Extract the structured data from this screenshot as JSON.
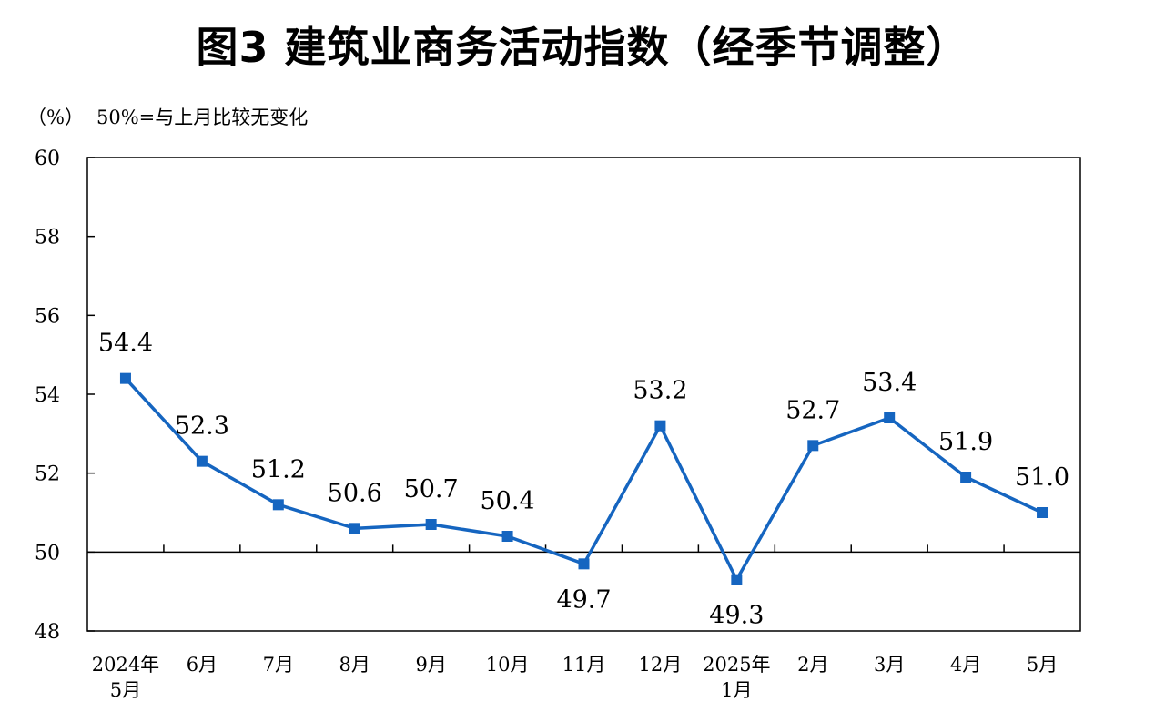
{
  "title": "图3  建筑业商务活动指数（经季节调整）",
  "unit_note": {
    "unit": "（%）",
    "note": "50%=与上月比较无变化"
  },
  "chart_data": {
    "type": "line",
    "title": "图3  建筑业商务活动指数（经季节调整）",
    "ylabel": "（%）",
    "annotation": "50%=与上月比较无变化",
    "ylim": [
      48,
      60
    ],
    "yticks": [
      48,
      50,
      52,
      54,
      56,
      58,
      60
    ],
    "reference_line": 50,
    "grid": false,
    "legend": "none",
    "color": "#1565C0",
    "categories": [
      [
        "2024年",
        "5月"
      ],
      [
        "6月"
      ],
      [
        "7月"
      ],
      [
        "8月"
      ],
      [
        "9月"
      ],
      [
        "10月"
      ],
      [
        "11月"
      ],
      [
        "12月"
      ],
      [
        "2025年",
        "1月"
      ],
      [
        "2月"
      ],
      [
        "3月"
      ],
      [
        "4月"
      ],
      [
        "5月"
      ]
    ],
    "series": [
      {
        "values": [
          54.4,
          52.3,
          51.2,
          50.6,
          50.7,
          50.4,
          49.7,
          53.2,
          49.3,
          52.7,
          53.4,
          51.9,
          51.0
        ],
        "labels": [
          "54.4",
          "52.3",
          "51.2",
          "50.6",
          "50.7",
          "50.4",
          "49.7",
          "53.2",
          "49.3",
          "52.7",
          "53.4",
          "51.9",
          "51.0"
        ]
      }
    ]
  }
}
